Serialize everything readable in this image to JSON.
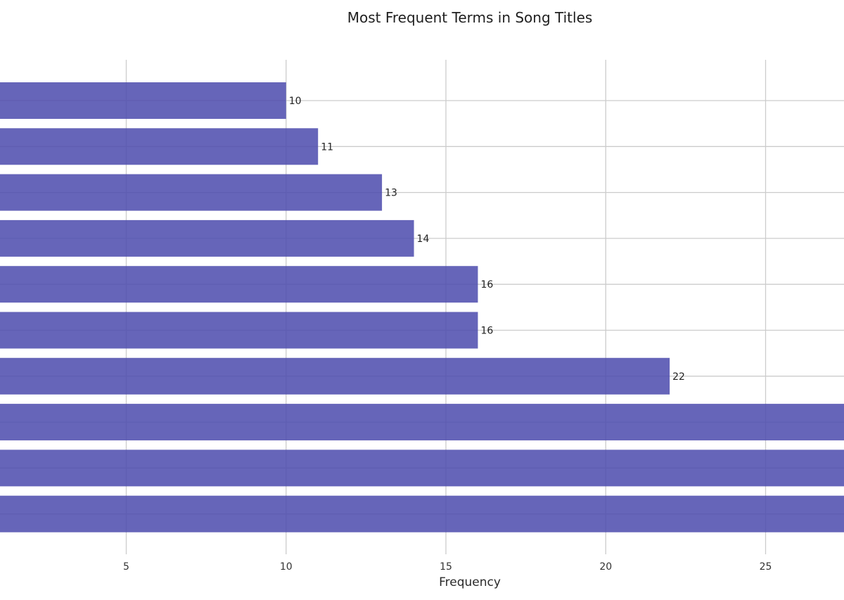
{
  "chart_data": {
    "type": "bar",
    "orientation": "horizontal",
    "title": "Most Frequent Terms in Song Titles",
    "xlabel": "Frequency",
    "ylabel": "",
    "x_ticks": [
      5,
      10,
      15,
      20,
      25
    ],
    "xlim": [
      1,
      27.5
    ],
    "grid": true,
    "bar_color": "#4b4aad",
    "grid_color": "#cccccc",
    "values": [
      10,
      11,
      13,
      14,
      16,
      16,
      22,
      28,
      28,
      28
    ],
    "labels": [
      "10",
      "11",
      "13",
      "14",
      "16",
      "16",
      "22",
      "",
      "",
      ""
    ]
  }
}
